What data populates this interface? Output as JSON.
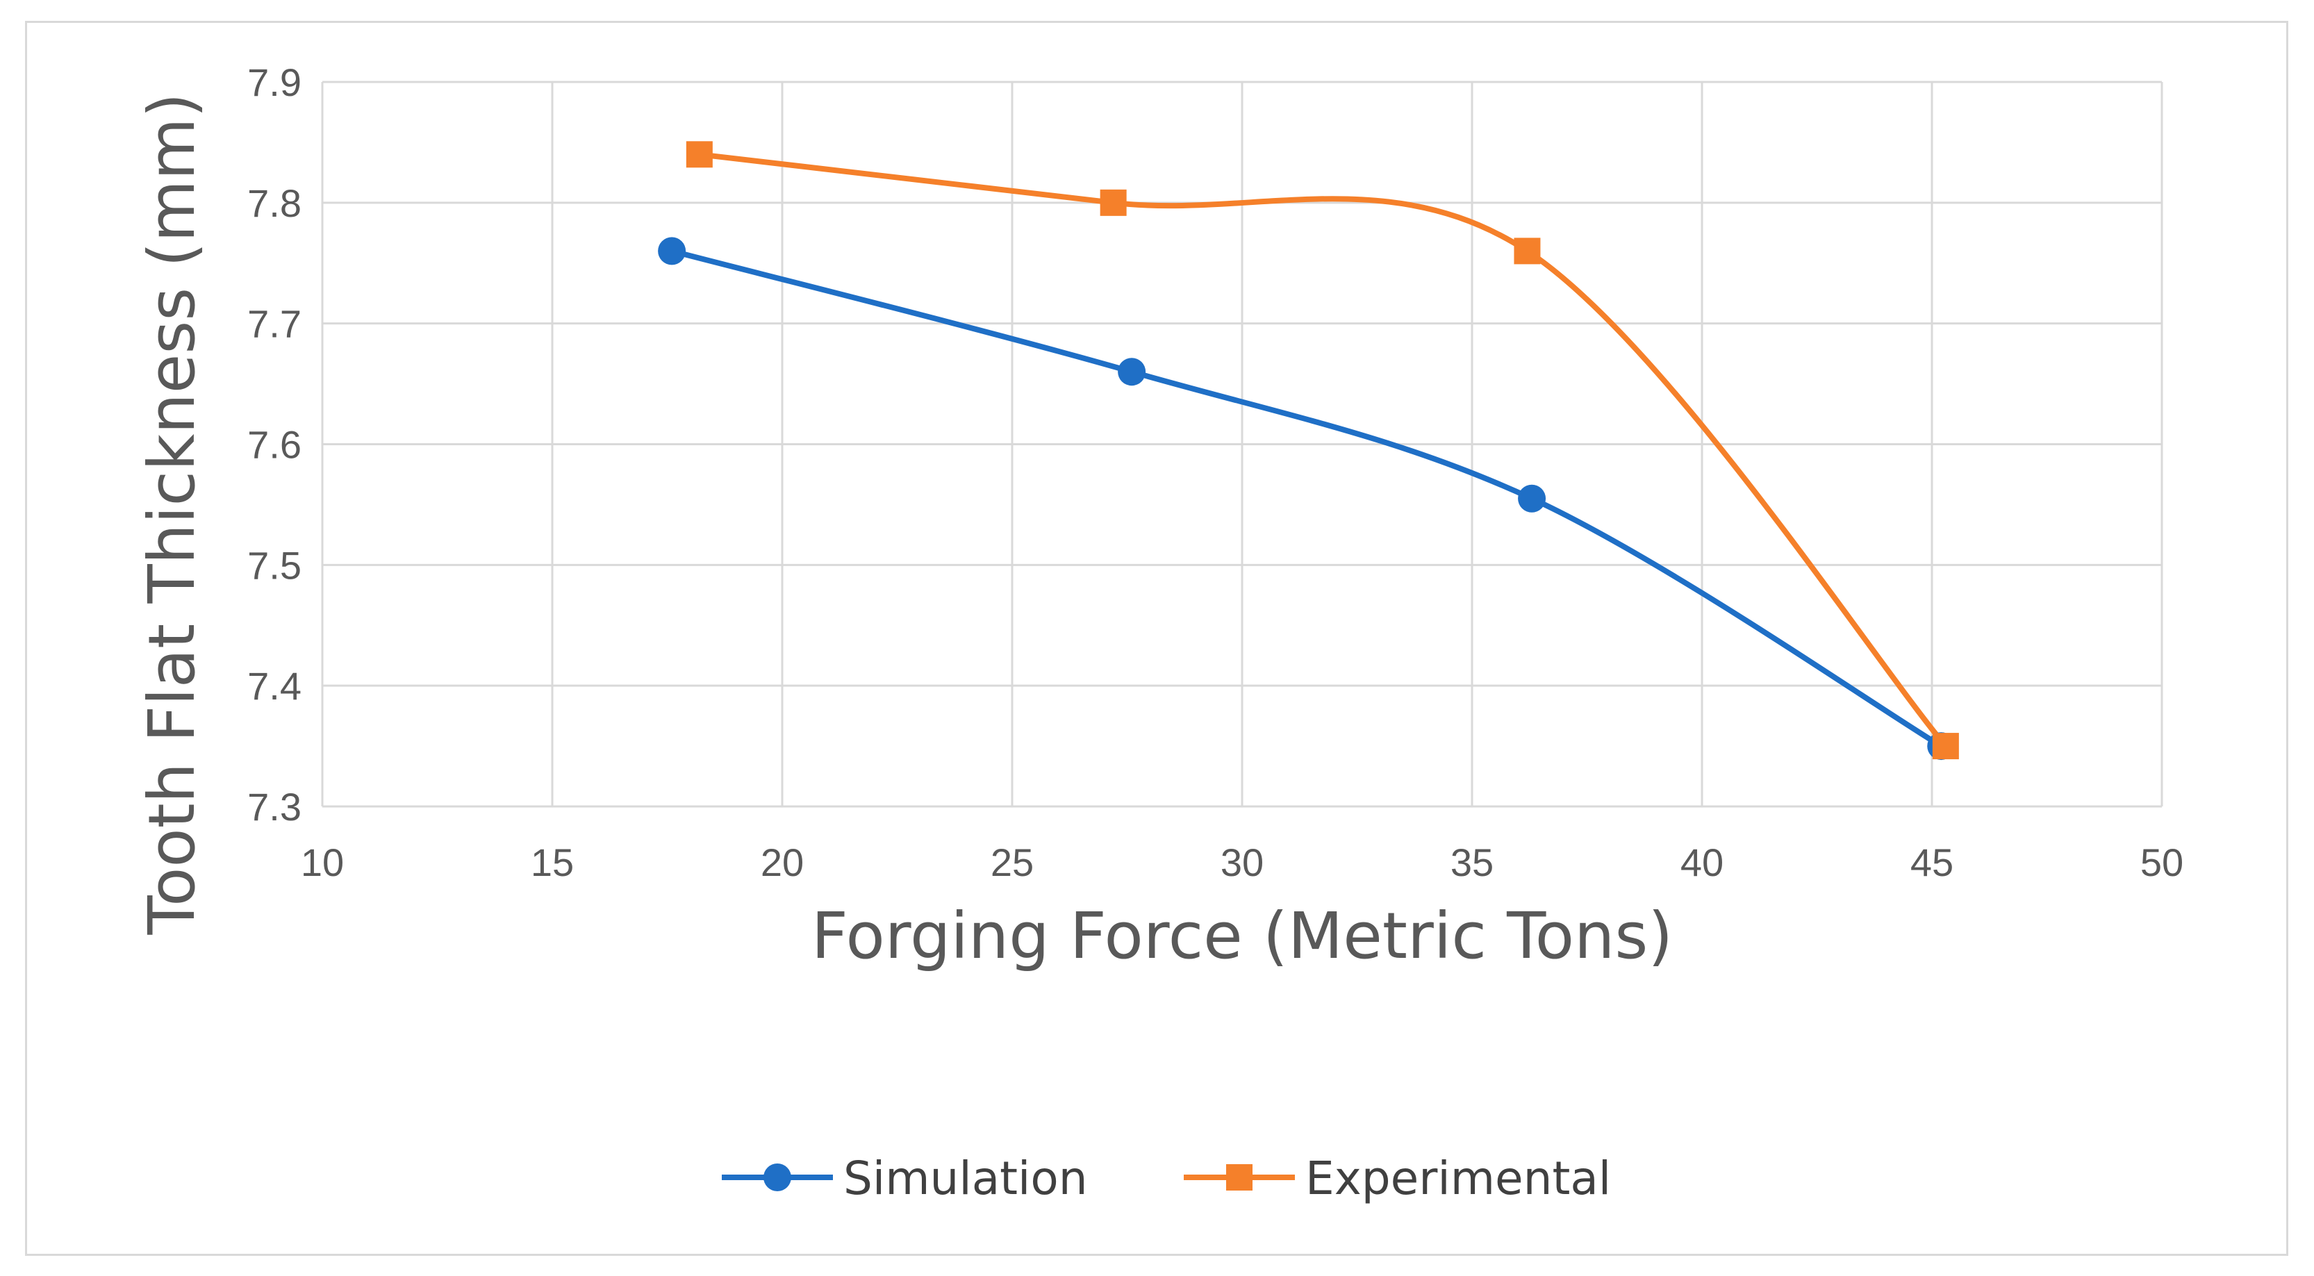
{
  "chart_data": {
    "type": "line",
    "smooth": true,
    "title": "",
    "xlabel": "Forging Force (Metric Tons)",
    "ylabel": "Tooth Flat Thickness (mm)",
    "xlim": [
      10,
      50
    ],
    "ylim": [
      7.3,
      7.9
    ],
    "x_ticks": [
      10,
      15,
      20,
      25,
      30,
      35,
      40,
      45,
      50
    ],
    "y_ticks": [
      7.3,
      7.4,
      7.5,
      7.6,
      7.7,
      7.8,
      7.9
    ],
    "x_tick_labels": [
      "10",
      "15",
      "20",
      "25",
      "30",
      "35",
      "40",
      "45",
      "50"
    ],
    "y_tick_labels": [
      "7.3",
      "7.4",
      "7.5",
      "7.6",
      "7.7",
      "7.8",
      "7.9"
    ],
    "grid": true,
    "legend_position": "bottom",
    "series": [
      {
        "name": "Simulation",
        "color": "#1f6fc6",
        "marker": "circle",
        "x": [
          17.6,
          27.6,
          36.3,
          45.2
        ],
        "y": [
          7.76,
          7.66,
          7.555,
          7.35
        ]
      },
      {
        "name": "Experimental",
        "color": "#f5802a",
        "marker": "square",
        "x": [
          18.2,
          27.2,
          36.2,
          45.3
        ],
        "y": [
          7.84,
          7.8,
          7.76,
          7.35
        ]
      }
    ]
  }
}
